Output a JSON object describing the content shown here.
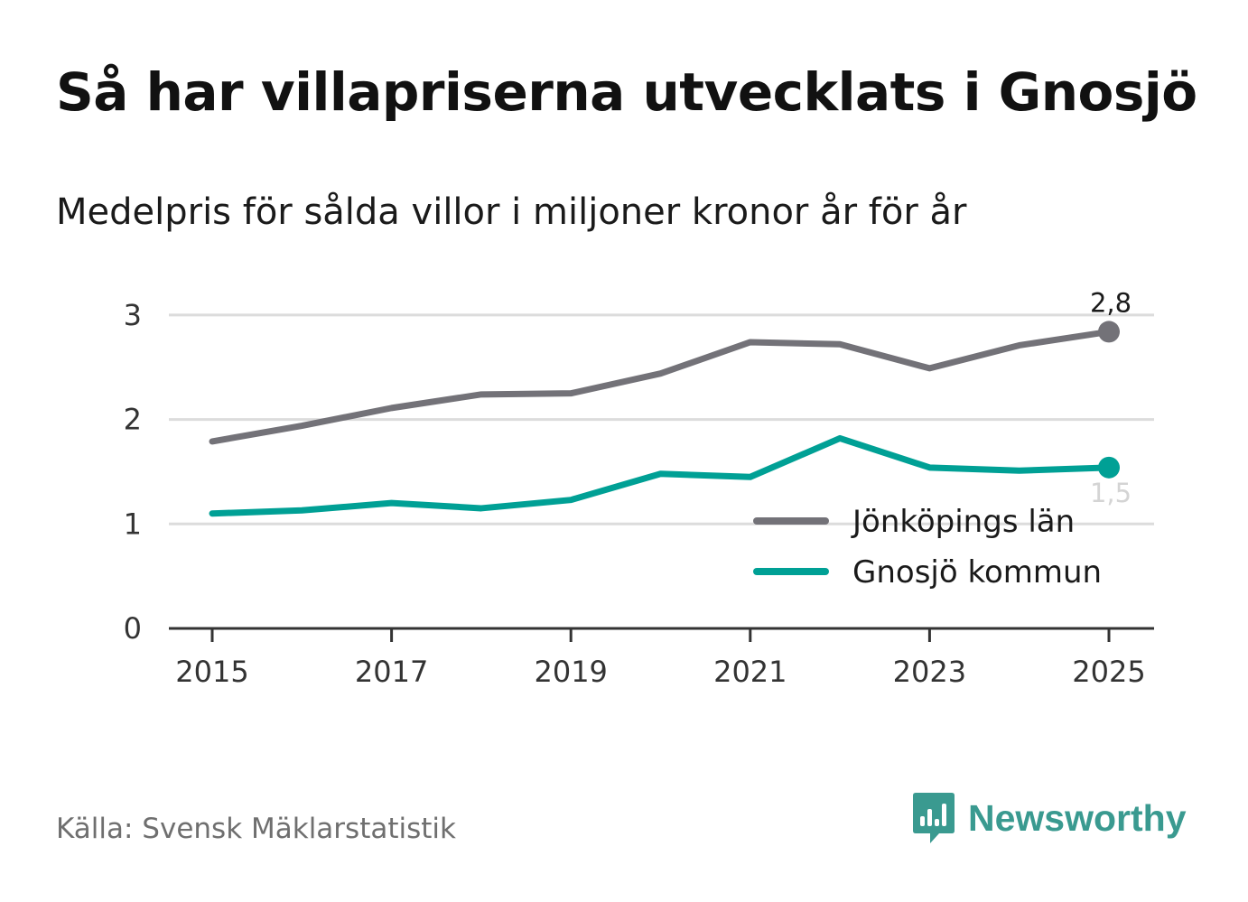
{
  "title": "Så har villapriserna utvecklats i Gnosjö",
  "subtitle": "Medelpris för sålda villor i miljoner kronor år för år",
  "source": "Källa: Svensk Mäklarstatistik",
  "brand": {
    "name": "Newsworthy",
    "icon": "newsworthy-logo-icon"
  },
  "chart_data": {
    "type": "line",
    "title": "Så har villapriserna utvecklats i Gnosjö",
    "subtitle": "Medelpris för sålda villor i miljoner kronor år för år",
    "xlabel": "",
    "ylabel": "",
    "x": [
      2015,
      2016,
      2017,
      2018,
      2019,
      2020,
      2021,
      2022,
      2023,
      2024,
      2025
    ],
    "xticks": [
      "2015",
      "2017",
      "2019",
      "2021",
      "2023",
      "2025"
    ],
    "yticks": [
      "0",
      "1",
      "2",
      "3"
    ],
    "ylim": [
      0,
      3.3
    ],
    "grid": true,
    "legend_position": "bottom-right",
    "series": [
      {
        "name": "Jönköpings län",
        "color": "#737278",
        "values": [
          1.79,
          1.94,
          2.11,
          2.24,
          2.25,
          2.44,
          2.74,
          2.72,
          2.49,
          2.71,
          2.84
        ],
        "end_label": "2,8"
      },
      {
        "name": "Gnosjö kommun",
        "color": "#00a095",
        "values": [
          1.1,
          1.13,
          1.2,
          1.15,
          1.23,
          1.48,
          1.45,
          1.82,
          1.54,
          1.51,
          1.54
        ],
        "end_label": "1,5"
      }
    ]
  }
}
